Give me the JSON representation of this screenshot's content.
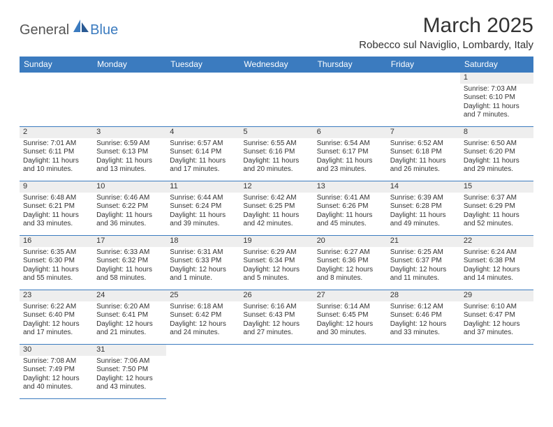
{
  "brand": {
    "general": "General",
    "blue": "Blue"
  },
  "title": "March 2025",
  "location": "Robecco sul Naviglio, Lombardy, Italy",
  "colors": {
    "header_bg": "#3b7bbf",
    "header_text": "#ffffff",
    "border": "#3b7bbf",
    "daynum_bg": "#eeeeee",
    "empty_bg": "#f0f0f0",
    "text": "#333333"
  },
  "day_headers": [
    "Sunday",
    "Monday",
    "Tuesday",
    "Wednesday",
    "Thursday",
    "Friday",
    "Saturday"
  ],
  "weeks": [
    [
      null,
      null,
      null,
      null,
      null,
      null,
      {
        "n": "1",
        "rise": "Sunrise: 7:03 AM",
        "set": "Sunset: 6:10 PM",
        "dl1": "Daylight: 11 hours",
        "dl2": "and 7 minutes."
      }
    ],
    [
      {
        "n": "2",
        "rise": "Sunrise: 7:01 AM",
        "set": "Sunset: 6:11 PM",
        "dl1": "Daylight: 11 hours",
        "dl2": "and 10 minutes."
      },
      {
        "n": "3",
        "rise": "Sunrise: 6:59 AM",
        "set": "Sunset: 6:13 PM",
        "dl1": "Daylight: 11 hours",
        "dl2": "and 13 minutes."
      },
      {
        "n": "4",
        "rise": "Sunrise: 6:57 AM",
        "set": "Sunset: 6:14 PM",
        "dl1": "Daylight: 11 hours",
        "dl2": "and 17 minutes."
      },
      {
        "n": "5",
        "rise": "Sunrise: 6:55 AM",
        "set": "Sunset: 6:16 PM",
        "dl1": "Daylight: 11 hours",
        "dl2": "and 20 minutes."
      },
      {
        "n": "6",
        "rise": "Sunrise: 6:54 AM",
        "set": "Sunset: 6:17 PM",
        "dl1": "Daylight: 11 hours",
        "dl2": "and 23 minutes."
      },
      {
        "n": "7",
        "rise": "Sunrise: 6:52 AM",
        "set": "Sunset: 6:18 PM",
        "dl1": "Daylight: 11 hours",
        "dl2": "and 26 minutes."
      },
      {
        "n": "8",
        "rise": "Sunrise: 6:50 AM",
        "set": "Sunset: 6:20 PM",
        "dl1": "Daylight: 11 hours",
        "dl2": "and 29 minutes."
      }
    ],
    [
      {
        "n": "9",
        "rise": "Sunrise: 6:48 AM",
        "set": "Sunset: 6:21 PM",
        "dl1": "Daylight: 11 hours",
        "dl2": "and 33 minutes."
      },
      {
        "n": "10",
        "rise": "Sunrise: 6:46 AM",
        "set": "Sunset: 6:22 PM",
        "dl1": "Daylight: 11 hours",
        "dl2": "and 36 minutes."
      },
      {
        "n": "11",
        "rise": "Sunrise: 6:44 AM",
        "set": "Sunset: 6:24 PM",
        "dl1": "Daylight: 11 hours",
        "dl2": "and 39 minutes."
      },
      {
        "n": "12",
        "rise": "Sunrise: 6:42 AM",
        "set": "Sunset: 6:25 PM",
        "dl1": "Daylight: 11 hours",
        "dl2": "and 42 minutes."
      },
      {
        "n": "13",
        "rise": "Sunrise: 6:41 AM",
        "set": "Sunset: 6:26 PM",
        "dl1": "Daylight: 11 hours",
        "dl2": "and 45 minutes."
      },
      {
        "n": "14",
        "rise": "Sunrise: 6:39 AM",
        "set": "Sunset: 6:28 PM",
        "dl1": "Daylight: 11 hours",
        "dl2": "and 49 minutes."
      },
      {
        "n": "15",
        "rise": "Sunrise: 6:37 AM",
        "set": "Sunset: 6:29 PM",
        "dl1": "Daylight: 11 hours",
        "dl2": "and 52 minutes."
      }
    ],
    [
      {
        "n": "16",
        "rise": "Sunrise: 6:35 AM",
        "set": "Sunset: 6:30 PM",
        "dl1": "Daylight: 11 hours",
        "dl2": "and 55 minutes."
      },
      {
        "n": "17",
        "rise": "Sunrise: 6:33 AM",
        "set": "Sunset: 6:32 PM",
        "dl1": "Daylight: 11 hours",
        "dl2": "and 58 minutes."
      },
      {
        "n": "18",
        "rise": "Sunrise: 6:31 AM",
        "set": "Sunset: 6:33 PM",
        "dl1": "Daylight: 12 hours",
        "dl2": "and 1 minute."
      },
      {
        "n": "19",
        "rise": "Sunrise: 6:29 AM",
        "set": "Sunset: 6:34 PM",
        "dl1": "Daylight: 12 hours",
        "dl2": "and 5 minutes."
      },
      {
        "n": "20",
        "rise": "Sunrise: 6:27 AM",
        "set": "Sunset: 6:36 PM",
        "dl1": "Daylight: 12 hours",
        "dl2": "and 8 minutes."
      },
      {
        "n": "21",
        "rise": "Sunrise: 6:25 AM",
        "set": "Sunset: 6:37 PM",
        "dl1": "Daylight: 12 hours",
        "dl2": "and 11 minutes."
      },
      {
        "n": "22",
        "rise": "Sunrise: 6:24 AM",
        "set": "Sunset: 6:38 PM",
        "dl1": "Daylight: 12 hours",
        "dl2": "and 14 minutes."
      }
    ],
    [
      {
        "n": "23",
        "rise": "Sunrise: 6:22 AM",
        "set": "Sunset: 6:40 PM",
        "dl1": "Daylight: 12 hours",
        "dl2": "and 17 minutes."
      },
      {
        "n": "24",
        "rise": "Sunrise: 6:20 AM",
        "set": "Sunset: 6:41 PM",
        "dl1": "Daylight: 12 hours",
        "dl2": "and 21 minutes."
      },
      {
        "n": "25",
        "rise": "Sunrise: 6:18 AM",
        "set": "Sunset: 6:42 PM",
        "dl1": "Daylight: 12 hours",
        "dl2": "and 24 minutes."
      },
      {
        "n": "26",
        "rise": "Sunrise: 6:16 AM",
        "set": "Sunset: 6:43 PM",
        "dl1": "Daylight: 12 hours",
        "dl2": "and 27 minutes."
      },
      {
        "n": "27",
        "rise": "Sunrise: 6:14 AM",
        "set": "Sunset: 6:45 PM",
        "dl1": "Daylight: 12 hours",
        "dl2": "and 30 minutes."
      },
      {
        "n": "28",
        "rise": "Sunrise: 6:12 AM",
        "set": "Sunset: 6:46 PM",
        "dl1": "Daylight: 12 hours",
        "dl2": "and 33 minutes."
      },
      {
        "n": "29",
        "rise": "Sunrise: 6:10 AM",
        "set": "Sunset: 6:47 PM",
        "dl1": "Daylight: 12 hours",
        "dl2": "and 37 minutes."
      }
    ],
    [
      {
        "n": "30",
        "rise": "Sunrise: 7:08 AM",
        "set": "Sunset: 7:49 PM",
        "dl1": "Daylight: 12 hours",
        "dl2": "and 40 minutes."
      },
      {
        "n": "31",
        "rise": "Sunrise: 7:06 AM",
        "set": "Sunset: 7:50 PM",
        "dl1": "Daylight: 12 hours",
        "dl2": "and 43 minutes."
      },
      null,
      null,
      null,
      null,
      null
    ]
  ]
}
